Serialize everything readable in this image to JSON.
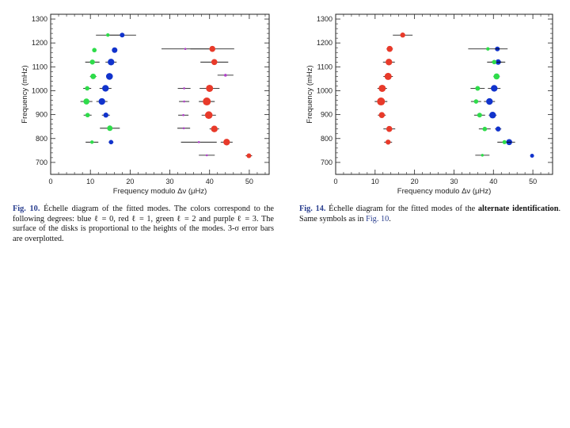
{
  "figures": [
    {
      "id": "fig10",
      "caption": {
        "label": "Fig. 10.",
        "parts": [
          {
            "t": " Échelle diagram of the fitted modes. The colors correspond to the following degrees: blue ℓ = 0, red ℓ = 1, green ℓ = 2 and purple ℓ = 3. The surface of the disks is proportional to the heights of the modes. 3-σ error bars are overplotted."
          }
        ]
      }
    },
    {
      "id": "fig14",
      "caption": {
        "label": "Fig. 14.",
        "parts": [
          {
            "t": " Échelle diagram for the fitted modes of the "
          },
          {
            "t": "alternate identification",
            "bold": true
          },
          {
            "t": ". Same symbols as in "
          },
          {
            "t": "Fig. 10",
            "ref": true
          },
          {
            "t": "."
          }
        ]
      }
    }
  ],
  "colors": {
    "blue": "#1133cc",
    "red": "#e83a2a",
    "green": "#2edc4a",
    "purple": "#b03fc8",
    "axis": "#222222",
    "errorbar": "#000000"
  },
  "chart_data": [
    {
      "type": "scatter",
      "title": "",
      "xlabel": "Frequency modulo Δν (μHz)",
      "ylabel": "Frequency (mHz)",
      "xlim": [
        0,
        55
      ],
      "ylim": [
        650,
        1320
      ],
      "xticks": [
        0,
        10,
        20,
        30,
        40,
        50
      ],
      "yticks": [
        700,
        800,
        900,
        1000,
        1100,
        1200,
        1300
      ],
      "series": [
        {
          "name": "ℓ = 0",
          "color": "blue",
          "points": [
            {
              "x": 18.0,
              "y": 1233,
              "err": 3.5,
              "size": 3
            },
            {
              "x": 16.1,
              "y": 1170,
              "err": 0.4,
              "size": 3.5
            },
            {
              "x": 15.2,
              "y": 1120,
              "err": 1.4,
              "size": 4.2
            },
            {
              "x": 14.8,
              "y": 1060,
              "err": 0.8,
              "size": 4.3
            },
            {
              "x": 13.8,
              "y": 1010,
              "err": 1.5,
              "size": 4.2
            },
            {
              "x": 12.9,
              "y": 955,
              "err": 1.4,
              "size": 4.2
            },
            {
              "x": 13.9,
              "y": 898,
              "err": 1.0,
              "size": 3.2
            },
            {
              "x": 15.2,
              "y": 785,
              "err": 0.6,
              "size": 2.8
            }
          ]
        },
        {
          "name": "ℓ = 1",
          "color": "red",
          "points": [
            {
              "x": 40.7,
              "y": 1175,
              "err": 5.5,
              "size": 3.8
            },
            {
              "x": 41.2,
              "y": 1120,
              "err": 3.5,
              "size": 3.8
            },
            {
              "x": 40.0,
              "y": 1010,
              "err": 2.5,
              "size": 4.5
            },
            {
              "x": 39.3,
              "y": 955,
              "err": 2.0,
              "size": 5
            },
            {
              "x": 39.8,
              "y": 898,
              "err": 1.8,
              "size": 4.8
            },
            {
              "x": 41.2,
              "y": 840,
              "err": 1.2,
              "size": 4.2
            },
            {
              "x": 44.3,
              "y": 785,
              "err": 1.5,
              "size": 4.2
            },
            {
              "x": 49.9,
              "y": 728,
              "err": 0.8,
              "size": 3
            }
          ]
        },
        {
          "name": "ℓ = 2",
          "color": "green",
          "points": [
            {
              "x": 14.4,
              "y": 1233,
              "err": 3.0,
              "size": 2.2
            },
            {
              "x": 11.0,
              "y": 1170,
              "err": 0.5,
              "size": 2.8
            },
            {
              "x": 10.5,
              "y": 1120,
              "err": 1.8,
              "size": 3.2
            },
            {
              "x": 10.7,
              "y": 1060,
              "err": 0.8,
              "size": 3.5
            },
            {
              "x": 9.2,
              "y": 1010,
              "err": 1.0,
              "size": 2.8
            },
            {
              "x": 9.0,
              "y": 955,
              "err": 1.5,
              "size": 3.8
            },
            {
              "x": 9.3,
              "y": 898,
              "err": 1.0,
              "size": 2.8
            },
            {
              "x": 14.9,
              "y": 843,
              "err": 2.5,
              "size": 3.5
            },
            {
              "x": 10.4,
              "y": 785,
              "err": 1.6,
              "size": 2.2
            }
          ]
        },
        {
          "name": "ℓ = 3",
          "color": "purple",
          "points": [
            {
              "x": 33.9,
              "y": 1175,
              "err": 6.0,
              "size": 1.3
            },
            {
              "x": 44.0,
              "y": 1065,
              "err": 2.0,
              "size": 1.8
            },
            {
              "x": 33.6,
              "y": 1010,
              "err": 1.6,
              "size": 1.3
            },
            {
              "x": 33.6,
              "y": 955,
              "err": 1.3,
              "size": 1.3
            },
            {
              "x": 33.4,
              "y": 898,
              "err": 1.3,
              "size": 1.3
            },
            {
              "x": 33.5,
              "y": 843,
              "err": 1.6,
              "size": 1.3
            },
            {
              "x": 37.3,
              "y": 785,
              "err": 4.5,
              "size": 1.3
            },
            {
              "x": 39.3,
              "y": 730,
              "err": 2.0,
              "size": 1.3
            }
          ]
        }
      ]
    },
    {
      "type": "scatter",
      "title": "",
      "xlabel": "Frequency modulo Δν (μHz)",
      "ylabel": "Frequency (mHz)",
      "xlim": [
        0,
        55
      ],
      "ylim": [
        650,
        1320
      ],
      "xticks": [
        0,
        10,
        20,
        30,
        40,
        50
      ],
      "yticks": [
        700,
        800,
        900,
        1000,
        1100,
        1200,
        1300
      ],
      "series": [
        {
          "name": "ℓ = 0",
          "color": "blue",
          "points": [
            {
              "x": 41.0,
              "y": 1175,
              "err": 0.5,
              "size": 3
            },
            {
              "x": 41.2,
              "y": 1120,
              "err": 1.8,
              "size": 3.5
            },
            {
              "x": 40.2,
              "y": 1010,
              "err": 1.6,
              "size": 4.2
            },
            {
              "x": 39.0,
              "y": 955,
              "err": 1.4,
              "size": 4.2
            },
            {
              "x": 39.8,
              "y": 898,
              "err": 1.0,
              "size": 4.2
            },
            {
              "x": 41.2,
              "y": 840,
              "err": 0.8,
              "size": 3.2
            },
            {
              "x": 44.0,
              "y": 785,
              "err": 1.5,
              "size": 3.8
            },
            {
              "x": 49.8,
              "y": 728,
              "err": 0.4,
              "size": 2.5
            }
          ]
        },
        {
          "name": "ℓ = 1",
          "color": "red",
          "points": [
            {
              "x": 17.0,
              "y": 1233,
              "err": 2.5,
              "size": 3.2
            },
            {
              "x": 13.7,
              "y": 1175,
              "err": 0.8,
              "size": 3.8
            },
            {
              "x": 13.5,
              "y": 1120,
              "err": 1.5,
              "size": 4.2
            },
            {
              "x": 13.3,
              "y": 1060,
              "err": 1.2,
              "size": 4.5
            },
            {
              "x": 11.8,
              "y": 1010,
              "err": 1.2,
              "size": 4.5
            },
            {
              "x": 11.5,
              "y": 955,
              "err": 1.6,
              "size": 5
            },
            {
              "x": 11.7,
              "y": 898,
              "err": 1.0,
              "size": 3.8
            },
            {
              "x": 13.6,
              "y": 840,
              "err": 1.5,
              "size": 3.8
            },
            {
              "x": 13.3,
              "y": 785,
              "err": 1.0,
              "size": 3.2
            }
          ]
        },
        {
          "name": "ℓ = 2",
          "color": "green",
          "points": [
            {
              "x": 38.6,
              "y": 1175,
              "err": 5.0,
              "size": 2.2
            },
            {
              "x": 40.2,
              "y": 1120,
              "err": 1.8,
              "size": 2.8
            },
            {
              "x": 40.8,
              "y": 1060,
              "err": 0.8,
              "size": 3.8
            },
            {
              "x": 36.0,
              "y": 1010,
              "err": 1.8,
              "size": 3.0
            },
            {
              "x": 35.6,
              "y": 955,
              "err": 1.3,
              "size": 2.8
            },
            {
              "x": 36.5,
              "y": 898,
              "err": 1.4,
              "size": 3.0
            },
            {
              "x": 37.8,
              "y": 840,
              "err": 1.5,
              "size": 2.8
            },
            {
              "x": 42.8,
              "y": 785,
              "err": 1.8,
              "size": 2.6
            },
            {
              "x": 37.2,
              "y": 730,
              "err": 1.8,
              "size": 1.7
            }
          ]
        }
      ]
    }
  ]
}
